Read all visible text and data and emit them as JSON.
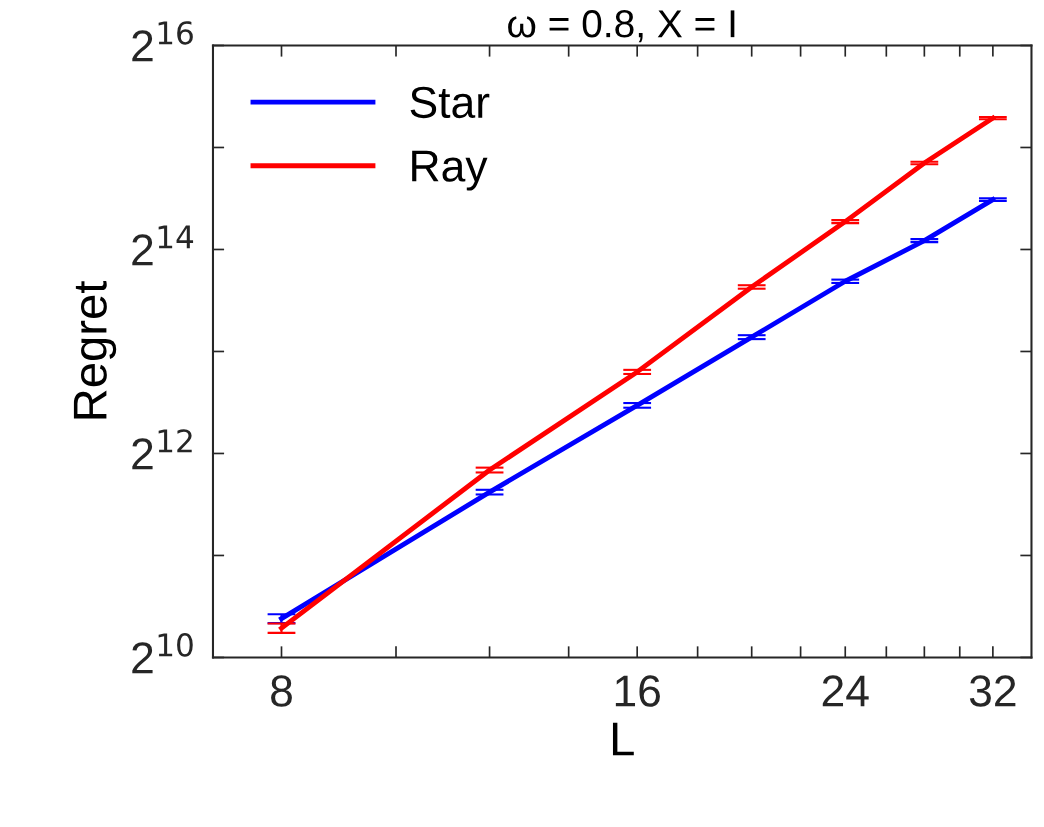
{
  "chart_data": {
    "type": "line",
    "title": "ω = 0.8, X = I",
    "xlabel": "L",
    "ylabel": "Regret",
    "x": [
      8,
      12,
      16,
      20,
      24,
      28,
      32
    ],
    "series": [
      {
        "name": "Star",
        "color": "#0000ff",
        "values": [
          1333,
          3150,
          5680,
          9030,
          13200,
          17400,
          23000
        ],
        "errors": [
          40,
          50,
          90,
          120,
          150,
          180,
          200
        ]
      },
      {
        "name": "Ray",
        "color": "#ff0000",
        "values": [
          1250,
          3660,
          7130,
          12700,
          19800,
          29500,
          40000
        ],
        "errors": [
          40,
          60,
          100,
          150,
          200,
          250,
          300
        ]
      }
    ],
    "log": "xy",
    "xlim": [
      7,
      34.5
    ],
    "ylim": [
      1024,
      65536
    ],
    "xticks": [
      8,
      {
        "value": 10,
        "label": null
      },
      {
        "value": 12,
        "label": null
      },
      {
        "value": 14,
        "label": null
      },
      16,
      {
        "value": 18,
        "label": null
      },
      {
        "value": 20,
        "label": null
      },
      {
        "value": 22,
        "label": null
      },
      24,
      {
        "value": 26,
        "label": null
      },
      {
        "value": 28,
        "label": null
      },
      {
        "value": 30,
        "label": null
      },
      32
    ],
    "yticks": [
      {
        "value": 1024,
        "label": "2$^{10}$"
      },
      {
        "value": 2048,
        "label": null
      },
      {
        "value": 4096,
        "label": "2$^{12}$"
      },
      {
        "value": 8192,
        "label": null
      },
      {
        "value": 16384,
        "label": "2$^{14}$"
      },
      {
        "value": 32768,
        "label": null
      },
      {
        "value": 65536,
        "label": "2$^{16}$"
      }
    ],
    "grid": false,
    "legend": "top left",
    "marker": "none",
    "line_style": "solid"
  }
}
